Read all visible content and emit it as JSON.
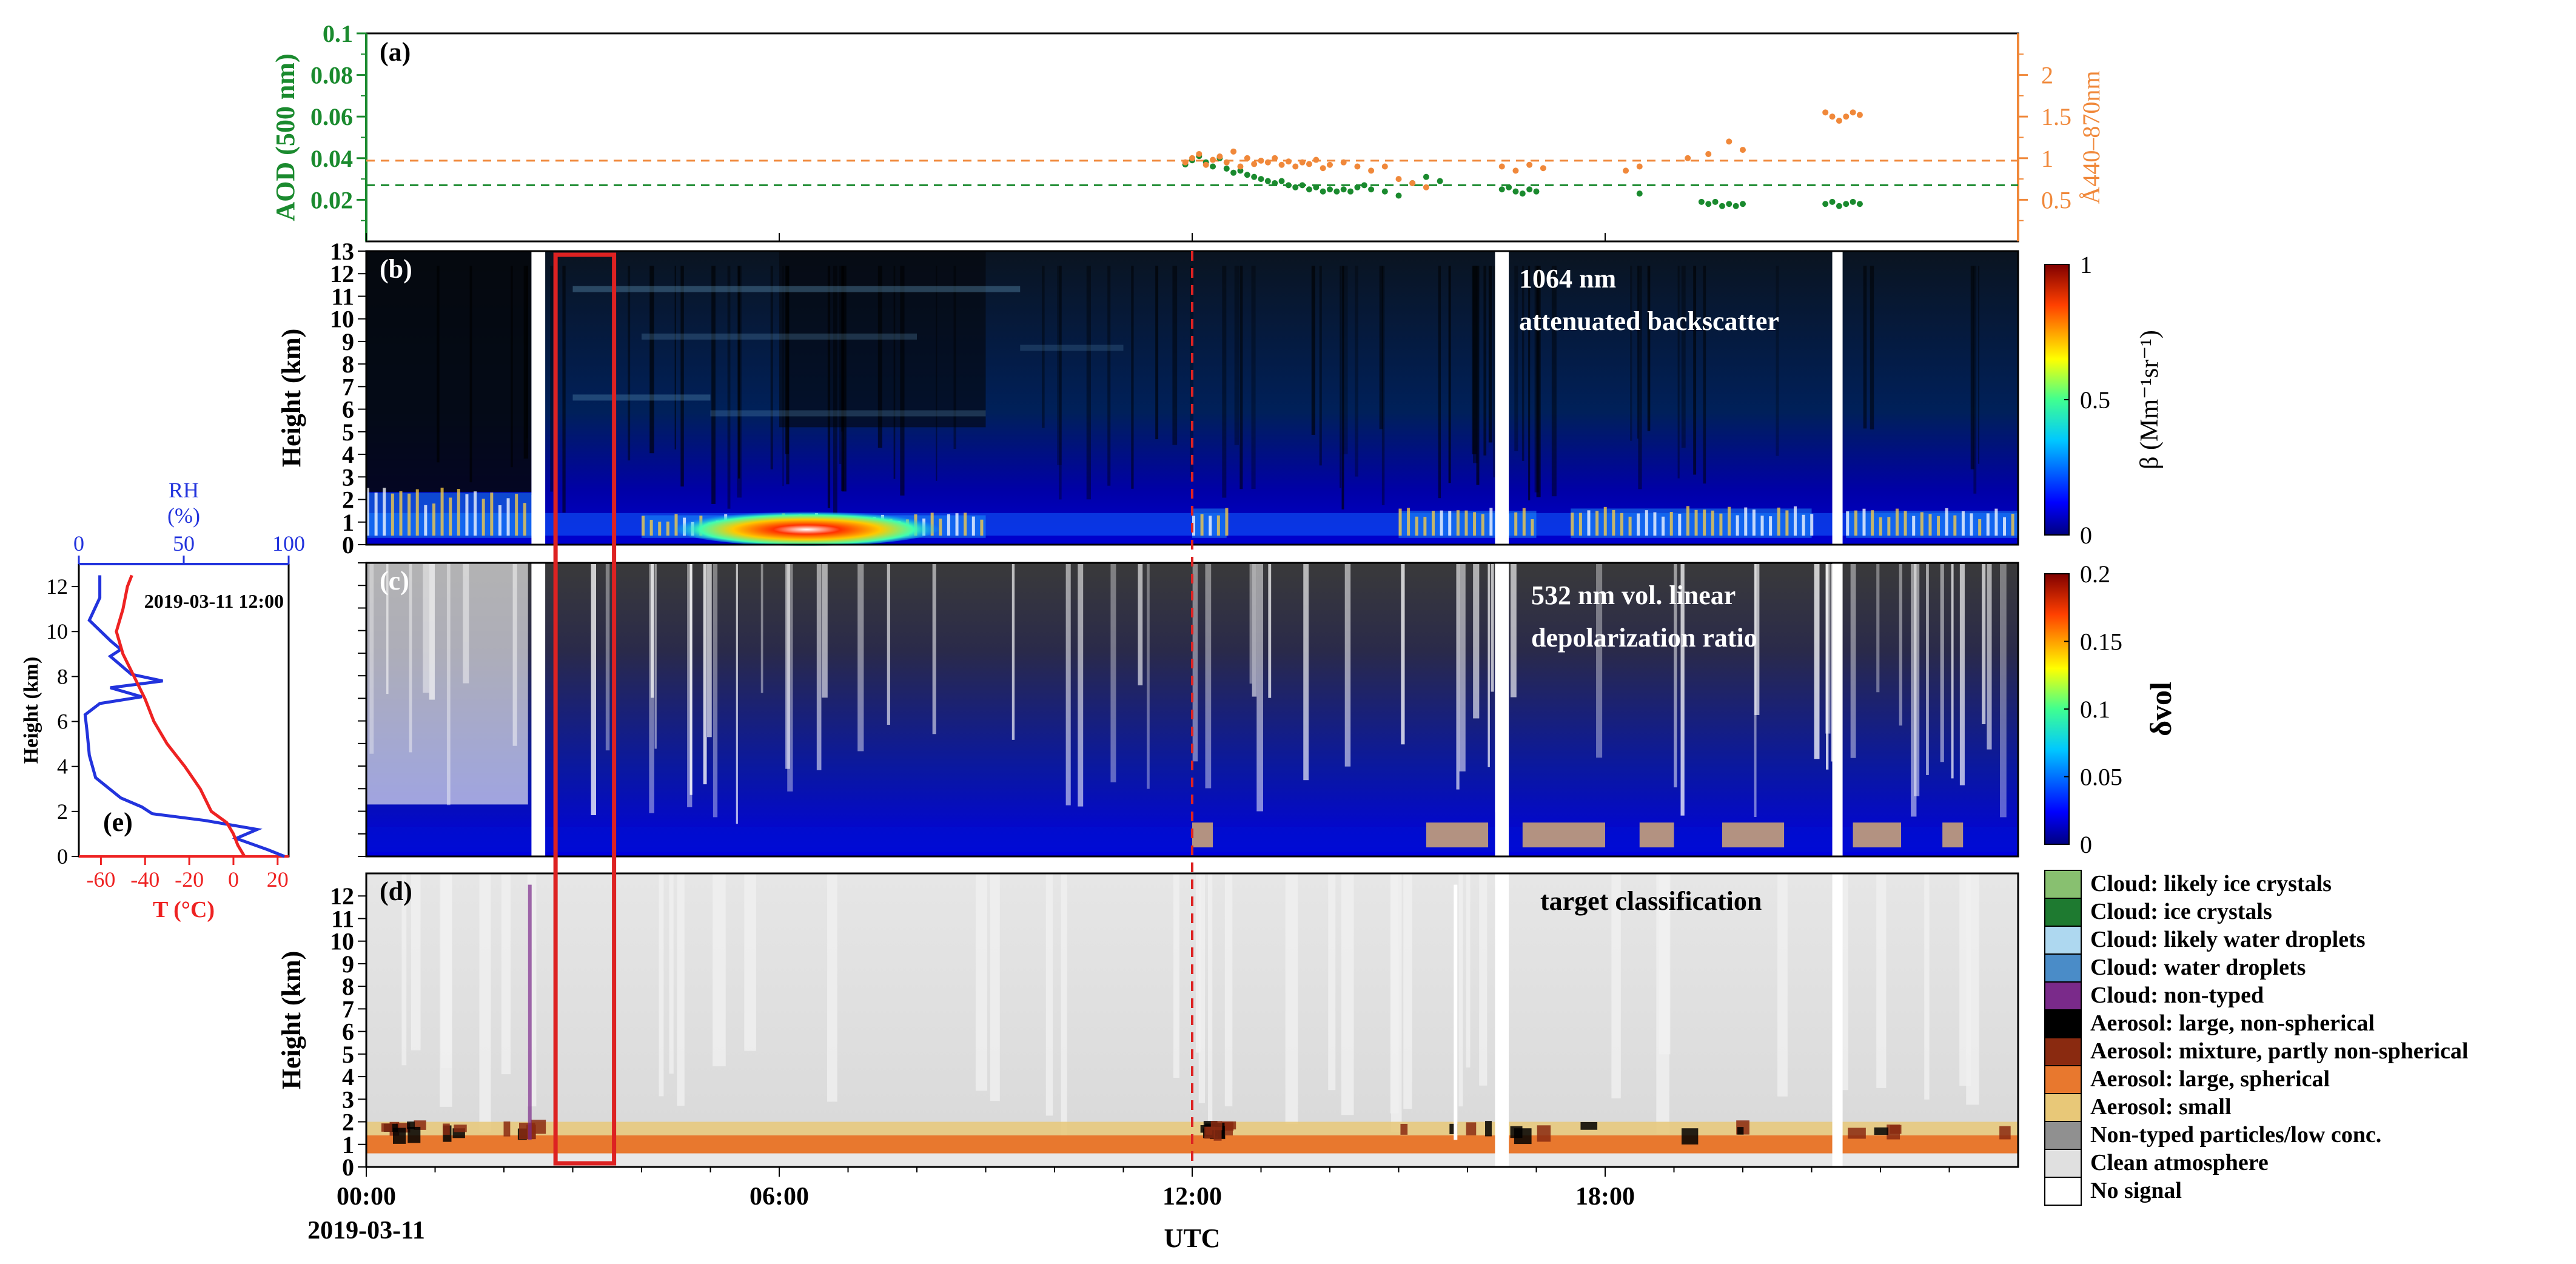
{
  "colors": {
    "aod": "#1a8a2e",
    "angstrom": "#f0883a",
    "rh": "#2233dd",
    "temp": "#ee2222",
    "highlight_box": "#dd2222",
    "noon_line": "#dd2222",
    "axis": "#000000"
  },
  "time_axis": {
    "ticks": [
      "00:00",
      "06:00",
      "12:00",
      "18:00"
    ],
    "tick_hours": [
      0,
      6,
      12,
      18
    ],
    "range_hours": [
      0,
      24
    ],
    "date_label": "2019-03-11",
    "label": "UTC"
  },
  "chart_data": [
    {
      "id": "a",
      "type": "scatter",
      "panel_label": "(a)",
      "ylabel_left": "AOD (500 nm)",
      "ylabel_right": "Å440–870nm",
      "ylim_left": [
        0,
        0.1
      ],
      "yticks_left": [
        "0.02",
        "0.04",
        "0.06",
        "0.08",
        "0.1"
      ],
      "yticks_left_values": [
        0.02,
        0.04,
        0.06,
        0.08,
        0.1
      ],
      "ylim_right": [
        0,
        2.5
      ],
      "yticks_right": [
        "0.5",
        "1",
        "1.5",
        "2"
      ],
      "yticks_right_values": [
        0.5,
        1,
        1.5,
        2
      ],
      "mean_lines": {
        "aod": 0.027,
        "angstrom": 0.97
      },
      "series": [
        {
          "name": "AOD (500 nm)",
          "axis": "left",
          "segments": [
            {
              "x": [
                11.9,
                12.0,
                12.1,
                12.2,
                12.3,
                12.4,
                12.5,
                12.6,
                12.7,
                12.8,
                12.9,
                13.0,
                13.1,
                13.2,
                13.3,
                13.4,
                13.5,
                13.6,
                13.7,
                13.8,
                13.9,
                14.0,
                14.1,
                14.2,
                14.3,
                14.4,
                14.5,
                14.6,
                14.8,
                15.0,
                15.2,
                15.4,
                15.6
              ],
              "y": [
                0.037,
                0.039,
                0.041,
                0.038,
                0.036,
                0.04,
                0.035,
                0.033,
                0.034,
                0.032,
                0.031,
                0.03,
                0.029,
                0.028,
                0.029,
                0.027,
                0.026,
                0.027,
                0.025,
                0.026,
                0.024,
                0.025,
                0.024,
                0.025,
                0.024,
                0.026,
                0.027,
                0.025,
                0.024,
                0.022,
                0.028,
                0.031,
                0.029
              ]
            },
            {
              "x": [
                16.5,
                16.6,
                16.7,
                16.8,
                16.9,
                17.0
              ],
              "y": [
                0.025,
                0.026,
                0.024,
                0.023,
                0.025,
                0.024
              ]
            },
            {
              "x": [
                18.5,
                19.4,
                19.5,
                19.6,
                19.7,
                19.8,
                19.9,
                20.0
              ],
              "y": [
                0.023,
                0.019,
                0.018,
                0.019,
                0.017,
                0.018,
                0.017,
                0.018
              ]
            },
            {
              "x": [
                21.2,
                21.3,
                21.4,
                21.5,
                21.6,
                21.7
              ],
              "y": [
                0.018,
                0.019,
                0.017,
                0.018,
                0.019,
                0.018
              ]
            }
          ]
        },
        {
          "name": "Å440–870nm",
          "axis": "right",
          "segments": [
            {
              "x": [
                11.9,
                12.0,
                12.1,
                12.2,
                12.3,
                12.4,
                12.5,
                12.6,
                12.7,
                12.8,
                12.9,
                13.0,
                13.1,
                13.2,
                13.3,
                13.4,
                13.5,
                13.6,
                13.7,
                13.8,
                13.9,
                14.0,
                14.2,
                14.4,
                14.6,
                14.8,
                15.0,
                15.2,
                15.4
              ],
              "y": [
                0.95,
                1.0,
                1.05,
                0.92,
                0.98,
                1.02,
                0.95,
                1.08,
                0.9,
                1.0,
                0.93,
                0.97,
                0.95,
                1.0,
                0.92,
                0.96,
                0.9,
                0.95,
                0.93,
                0.98,
                0.88,
                0.92,
                0.95,
                0.9,
                0.85,
                0.9,
                0.75,
                0.7,
                0.65
              ]
            },
            {
              "x": [
                16.5,
                16.7,
                16.9,
                17.1,
                18.3,
                18.5,
                19.2,
                19.5,
                19.8,
                20.0
              ],
              "y": [
                0.9,
                0.85,
                0.92,
                0.88,
                0.85,
                0.9,
                1.0,
                1.05,
                1.2,
                1.1
              ]
            },
            {
              "x": [
                21.2,
                21.3,
                21.4,
                21.5,
                21.6,
                21.7
              ],
              "y": [
                1.55,
                1.5,
                1.45,
                1.5,
                1.55,
                1.52
              ]
            }
          ]
        }
      ]
    },
    {
      "id": "b",
      "type": "heatmap",
      "panel_label": "(b)",
      "title_lines": [
        "1064 nm",
        "attenuated backscatter"
      ],
      "ylabel": "Height (km)",
      "ylim": [
        0,
        13
      ],
      "yticks": [
        "0",
        "1",
        "2",
        "3",
        "4",
        "5",
        "6",
        "7",
        "8",
        "9",
        "10",
        "11",
        "12",
        "13"
      ],
      "colorbar": {
        "min": 0,
        "max": 1,
        "ticks": [
          "0",
          "0.5",
          "1"
        ],
        "label": "β (Mm⁻¹sr⁻¹)"
      },
      "cloud_top_km": [
        {
          "t0": 0,
          "t1": 2.5,
          "h": 2.3
        },
        {
          "t0": 4,
          "t1": 9,
          "h": 1.3
        },
        {
          "t0": 12,
          "t1": 12.5,
          "h": 1.6
        },
        {
          "t0": 15,
          "t1": 17,
          "h": 1.5
        },
        {
          "t0": 17.5,
          "t1": 21,
          "h": 1.6
        },
        {
          "t0": 21.5,
          "t1": 24,
          "h": 1.5
        }
      ],
      "no_data_hours": [
        [
          2.4,
          2.6
        ],
        [
          16.4,
          16.6
        ],
        [
          21.3,
          21.45
        ]
      ]
    },
    {
      "id": "c",
      "type": "heatmap",
      "panel_label": "(c)",
      "title_lines": [
        "532 nm vol. linear",
        "depolarization ratio"
      ],
      "ylim": [
        0,
        13
      ],
      "colorbar": {
        "min": 0,
        "max": 0.2,
        "ticks": [
          "0",
          "0.05",
          "0.1",
          "0.15",
          "0.2"
        ],
        "label": "δvol"
      },
      "no_data_hours": [
        [
          2.4,
          2.6
        ],
        [
          16.4,
          16.6
        ],
        [
          21.3,
          21.45
        ]
      ]
    },
    {
      "id": "d",
      "type": "heatmap",
      "panel_label": "(d)",
      "title_lines": [
        "target classification"
      ],
      "ylabel": "Height (km)",
      "ylim": [
        0,
        13
      ],
      "yticks": [
        "0",
        "1",
        "2",
        "3",
        "4",
        "5",
        "6",
        "7",
        "8",
        "9",
        "10",
        "11",
        "12"
      ],
      "legend": [
        {
          "label": "Cloud: likely ice crystals",
          "color": "#88c070"
        },
        {
          "label": "Cloud: ice crystals",
          "color": "#1e7a30"
        },
        {
          "label": "Cloud: likely water droplets",
          "color": "#aed8f0"
        },
        {
          "label": "Cloud: water droplets",
          "color": "#4a8cc8"
        },
        {
          "label": "Cloud: non-typed",
          "color": "#7a2a8a"
        },
        {
          "label": "Aerosol: large, non-spherical",
          "color": "#000000"
        },
        {
          "label": "Aerosol: mixture, partly non-spherical",
          "color": "#8a2a10"
        },
        {
          "label": "Aerosol: large, spherical",
          "color": "#e8782e"
        },
        {
          "label": "Aerosol: small",
          "color": "#e8c878"
        },
        {
          "label": "Non-typed particles/low conc.",
          "color": "#909090"
        },
        {
          "label": "Clean atmosphere",
          "color": "#e0e0e0"
        },
        {
          "label": "No signal",
          "color": "#ffffff"
        }
      ],
      "no_data_hours": [
        [
          16.4,
          16.6
        ],
        [
          21.3,
          21.45
        ]
      ]
    },
    {
      "id": "e",
      "type": "line",
      "panel_label": "(e)",
      "timestamp": "2019-03-11 12:00",
      "ylabel": "Height (km)",
      "ylim": [
        0,
        13
      ],
      "yticks": [
        "0",
        "2",
        "4",
        "6",
        "8",
        "10",
        "12"
      ],
      "top_axis": {
        "label_lines": [
          "RH",
          "(%)"
        ],
        "ticks": [
          "0",
          "50",
          "100"
        ],
        "range": [
          0,
          100
        ]
      },
      "bottom_axis": {
        "label": "T (°C)",
        "ticks": [
          "-60",
          "-40",
          "-20",
          "0",
          "20"
        ],
        "range": [
          -70,
          25
        ]
      },
      "series": [
        {
          "name": "RH",
          "axis": "top",
          "x": [
            98,
            90,
            75,
            85,
            60,
            35,
            30,
            20,
            8,
            5,
            4,
            3,
            10,
            30,
            15,
            40,
            25,
            20,
            15,
            20,
            15,
            5,
            10,
            10
          ],
          "y": [
            0,
            0.3,
            0.8,
            1.2,
            1.6,
            1.9,
            2.2,
            2.6,
            3.5,
            4.5,
            5.5,
            6.3,
            6.8,
            7.1,
            7.5,
            7.8,
            8.1,
            8.5,
            8.9,
            9.2,
            9.6,
            10.5,
            11.5,
            12.5
          ]
        },
        {
          "name": "T",
          "axis": "bottom",
          "x": [
            5,
            2,
            0,
            -3,
            -10,
            -15,
            -22,
            -30,
            -36,
            -40,
            -45,
            -50,
            -53,
            -50,
            -48,
            -46
          ],
          "y": [
            0,
            0.5,
            1,
            1.5,
            2,
            3,
            4,
            5,
            6,
            7,
            8,
            9,
            10,
            11,
            12,
            12.5
          ]
        }
      ]
    }
  ]
}
